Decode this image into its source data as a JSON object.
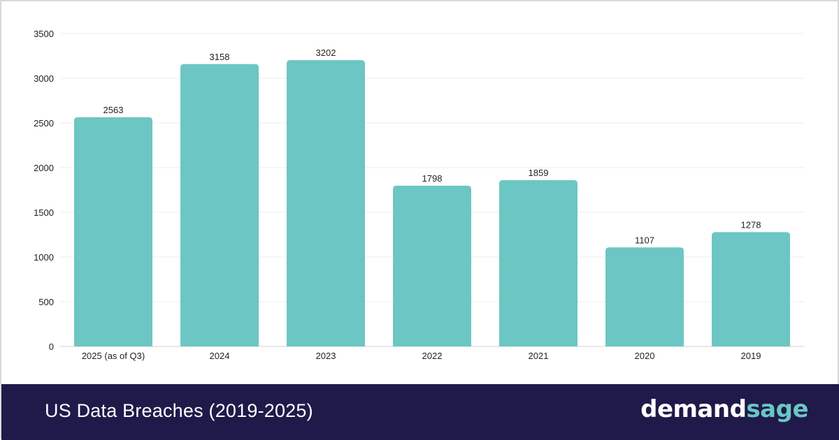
{
  "chart_data": {
    "type": "bar",
    "categories": [
      "2025 (as of Q3)",
      "2024",
      "2023",
      "2022",
      "2021",
      "2020",
      "2019"
    ],
    "values": [
      2563,
      3158,
      3202,
      1798,
      1859,
      1107,
      1278
    ],
    "yticks": [
      0,
      500,
      1000,
      1500,
      2000,
      2500,
      3000,
      3500
    ],
    "ylim": [
      0,
      3500
    ],
    "grid": true,
    "bar_color": "#6cc6c3",
    "title": "",
    "xlabel": "",
    "ylabel": ""
  },
  "footer": {
    "title": "US Data Breaches (2019-2025)",
    "brand_part1": "demand",
    "brand_part2": "sage",
    "background": "#1f1a4a",
    "brand_accent": "#6cc6c3"
  }
}
